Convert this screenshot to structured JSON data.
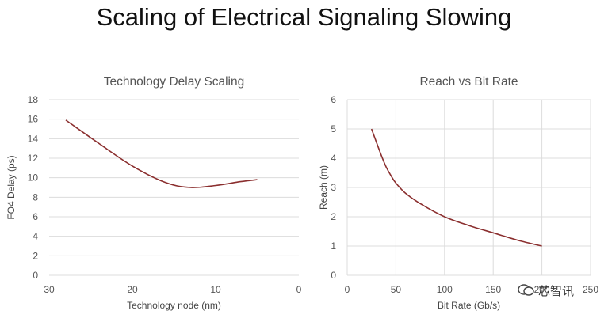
{
  "page_title": "Scaling of Electrical Signaling Slowing",
  "colors": {
    "line": "#8b2f2f",
    "grid": "#dcdcdc",
    "text": "#555555"
  },
  "watermark": {
    "text": "芯智讯"
  },
  "chart_data": [
    {
      "type": "line",
      "title": "Technology Delay Scaling",
      "xlabel": "Technology node (nm)",
      "ylabel": "FO4 Delay (ps)",
      "xlim": [
        30,
        0
      ],
      "ylim": [
        0,
        18
      ],
      "x_reversed": true,
      "x_ticks": [
        "30",
        "20",
        "10",
        "0"
      ],
      "y_ticks": [
        "0",
        "2",
        "4",
        "6",
        "8",
        "10",
        "12",
        "14",
        "16",
        "18"
      ],
      "grid": "horizontal",
      "series": [
        {
          "x": [
            28,
            24,
            20,
            16,
            13,
            10,
            7,
            5
          ],
          "y": [
            15.9,
            13.5,
            11.2,
            9.5,
            9.0,
            9.2,
            9.6,
            9.8
          ]
        }
      ]
    },
    {
      "type": "line",
      "title": "Reach vs Bit Rate",
      "xlabel": "Bit Rate (Gb/s)",
      "ylabel": "Reach (m)",
      "xlim": [
        0,
        250
      ],
      "ylim": [
        0,
        6
      ],
      "x_ticks": [
        "0",
        "50",
        "100",
        "150",
        "200",
        "250"
      ],
      "y_ticks": [
        "0",
        "1",
        "2",
        "3",
        "4",
        "5",
        "6"
      ],
      "grid": "both",
      "series": [
        {
          "x": [
            25,
            30,
            35,
            40,
            45,
            50,
            60,
            75,
            100,
            125,
            150,
            175,
            200
          ],
          "y": [
            5.0,
            4.55,
            4.1,
            3.7,
            3.4,
            3.15,
            2.8,
            2.45,
            2.0,
            1.7,
            1.45,
            1.2,
            1.0
          ]
        }
      ]
    }
  ]
}
